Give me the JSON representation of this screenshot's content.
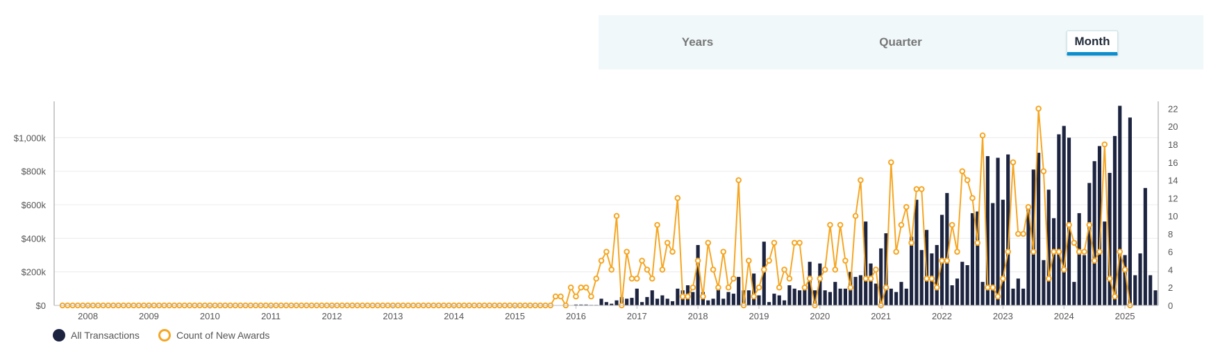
{
  "tabs": [
    {
      "label": "Years",
      "active": false
    },
    {
      "label": "Quarter",
      "active": false
    },
    {
      "label": "Month",
      "active": true
    }
  ],
  "legend": [
    {
      "label": "All Transactions",
      "color": "#1d2440"
    },
    {
      "label": "Count of New Awards",
      "color": "#f5a623"
    }
  ],
  "chart_data": {
    "type": "bar+line",
    "x_start": "2007-08",
    "x_tick_labels": [
      "2008",
      "2009",
      "2010",
      "2011",
      "2012",
      "2013",
      "2014",
      "2015",
      "2016",
      "2017",
      "2018",
      "2019",
      "2020",
      "2021",
      "2022",
      "2023",
      "2024",
      "2025"
    ],
    "y_left": {
      "ticks": [
        "$0",
        "$200k",
        "$400k",
        "$600k",
        "$800k",
        "$1,000k"
      ],
      "min": 0,
      "max": 1200000
    },
    "y_right": {
      "ticks": [
        "0",
        "2",
        "4",
        "6",
        "8",
        "10",
        "12",
        "14",
        "16",
        "18",
        "20",
        "22"
      ],
      "min": 0,
      "max": 22.5
    },
    "series": [
      {
        "name": "All Transactions",
        "type": "bar",
        "color": "#1d2440",
        "values": [
          0,
          0,
          0,
          0,
          0,
          0,
          0,
          0,
          0,
          0,
          0,
          0,
          0,
          0,
          0,
          0,
          0,
          0,
          0,
          0,
          0,
          0,
          0,
          0,
          0,
          0,
          0,
          0,
          0,
          0,
          0,
          0,
          0,
          0,
          0,
          0,
          0,
          0,
          0,
          0,
          0,
          0,
          0,
          0,
          0,
          0,
          0,
          0,
          0,
          0,
          0,
          0,
          0,
          0,
          0,
          0,
          0,
          0,
          0,
          0,
          0,
          0,
          0,
          0,
          0,
          0,
          0,
          0,
          0,
          0,
          0,
          0,
          0,
          0,
          0,
          0,
          0,
          0,
          0,
          0,
          0,
          0,
          0,
          0,
          0,
          0,
          0,
          0,
          0,
          0,
          0,
          0,
          0,
          0,
          0,
          0,
          0,
          0,
          0,
          0,
          0,
          5000,
          5000,
          5000,
          3000,
          3000,
          40000,
          20000,
          10000,
          30000,
          50000,
          40000,
          45000,
          100000,
          20000,
          50000,
          90000,
          40000,
          60000,
          40000,
          25000,
          100000,
          90000,
          120000,
          80000,
          360000,
          80000,
          30000,
          40000,
          120000,
          40000,
          80000,
          70000,
          170000,
          90000,
          90000,
          190000,
          60000,
          380000,
          20000,
          70000,
          60000,
          30000,
          120000,
          100000,
          90000,
          100000,
          260000,
          90000,
          250000,
          90000,
          80000,
          140000,
          100000,
          100000,
          200000,
          170000,
          180000,
          500000,
          250000,
          130000,
          340000,
          430000,
          100000,
          80000,
          140000,
          100000,
          410000,
          630000,
          330000,
          450000,
          310000,
          360000,
          540000,
          670000,
          120000,
          160000,
          260000,
          240000,
          550000,
          560000,
          140000,
          890000,
          610000,
          880000,
          630000,
          900000,
          100000,
          160000,
          100000,
          590000,
          810000,
          910000,
          270000,
          690000,
          520000,
          1020000,
          1070000,
          1000000,
          140000,
          550000,
          300000,
          730000,
          860000,
          950000,
          500000,
          790000,
          1010000,
          1190000,
          300000,
          1120000,
          180000,
          310000,
          700000,
          180000,
          90000
        ]
      },
      {
        "name": "Count of New Awards",
        "type": "line",
        "color": "#f5a623",
        "values": [
          0,
          0,
          0,
          0,
          0,
          0,
          0,
          0,
          0,
          0,
          0,
          0,
          0,
          0,
          0,
          0,
          0,
          0,
          0,
          0,
          0,
          0,
          0,
          0,
          0,
          0,
          0,
          0,
          0,
          0,
          0,
          0,
          0,
          0,
          0,
          0,
          0,
          0,
          0,
          0,
          0,
          0,
          0,
          0,
          0,
          0,
          0,
          0,
          0,
          0,
          0,
          0,
          0,
          0,
          0,
          0,
          0,
          0,
          0,
          0,
          0,
          0,
          0,
          0,
          0,
          0,
          0,
          0,
          0,
          0,
          0,
          0,
          0,
          0,
          0,
          0,
          0,
          0,
          0,
          0,
          0,
          0,
          0,
          0,
          0,
          0,
          0,
          0,
          0,
          0,
          0,
          0,
          0,
          0,
          0,
          0,
          0,
          1,
          1,
          0,
          2,
          1,
          2,
          2,
          1,
          3,
          5,
          6,
          4,
          10,
          0,
          6,
          3,
          3,
          5,
          4,
          3,
          9,
          4,
          7,
          6,
          12,
          1,
          1,
          2,
          5,
          1,
          7,
          4,
          2,
          6,
          2,
          3,
          14,
          0,
          5,
          1,
          2,
          4,
          5,
          7,
          2,
          4,
          3,
          7,
          7,
          2,
          3,
          0,
          3,
          4,
          9,
          4,
          9,
          5,
          2,
          10,
          14,
          3,
          3,
          4,
          0,
          2,
          16,
          6,
          9,
          11,
          7,
          13,
          13,
          3,
          3,
          2,
          5,
          5,
          9,
          6,
          15,
          14,
          12,
          7,
          19,
          2,
          2,
          1,
          3,
          6,
          16,
          8,
          8,
          11,
          6,
          22,
          15,
          3,
          6,
          6,
          4,
          9,
          7,
          6,
          6,
          9,
          5,
          6,
          18,
          3,
          1,
          6,
          4,
          0
        ]
      }
    ]
  }
}
